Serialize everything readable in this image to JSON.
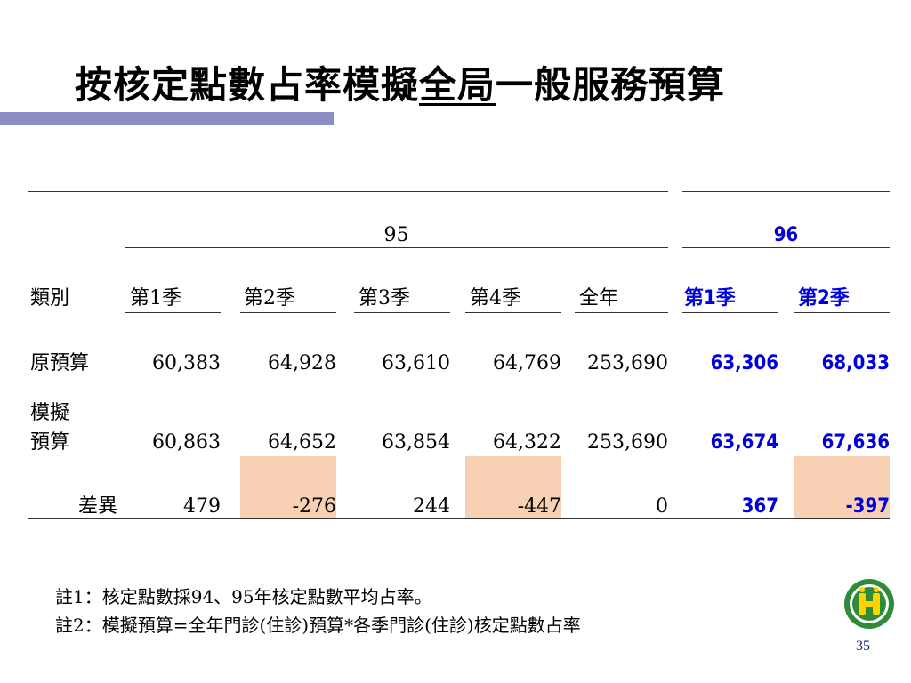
{
  "title": {
    "before": "按核定點數占率模擬",
    "underlined": "全局",
    "after": "一般服務預算"
  },
  "table": {
    "year_95": "95",
    "year_96": "96",
    "col_category": "類別",
    "col_q1": "第1季",
    "col_q2": "第2季",
    "col_q3": "第3季",
    "col_q4": "第4季",
    "col_full_year": "全年",
    "col_96_q1": "第1季",
    "col_96_q2": "第2季",
    "row_original": {
      "label": "原預算",
      "q1": "60,383",
      "q2": "64,928",
      "q3": "63,610",
      "q4": "64,769",
      "full_year": "253,690",
      "y96_q1": "63,306",
      "y96_q2": "68,033"
    },
    "row_simulated": {
      "label_line1": "模擬",
      "label_line2": "預算",
      "q1": "60,863",
      "q2": "64,652",
      "q3": "63,854",
      "q4": "64,322",
      "full_year": "253,690",
      "y96_q1": "63,674",
      "y96_q2": "67,636"
    },
    "row_diff": {
      "label": "差異",
      "q1": "479",
      "q2": "-276",
      "q3": "244",
      "q4": "-447",
      "full_year": "0",
      "y96_q1": "367",
      "y96_q2": "-397"
    }
  },
  "notes": {
    "note1": "註1：核定點數採94、95年核定點數平均占率。",
    "note2": "註2：模擬預算=全年門診(住診)預算*各季門診(住診)核定點數占率"
  },
  "page_number": "35",
  "colors": {
    "accent_bar": "#8e8ec6",
    "highlight_blue": "#0000dd",
    "negative_shade": "#f8d0b4"
  },
  "icons": {
    "logo": "bureau-logo-icon"
  }
}
